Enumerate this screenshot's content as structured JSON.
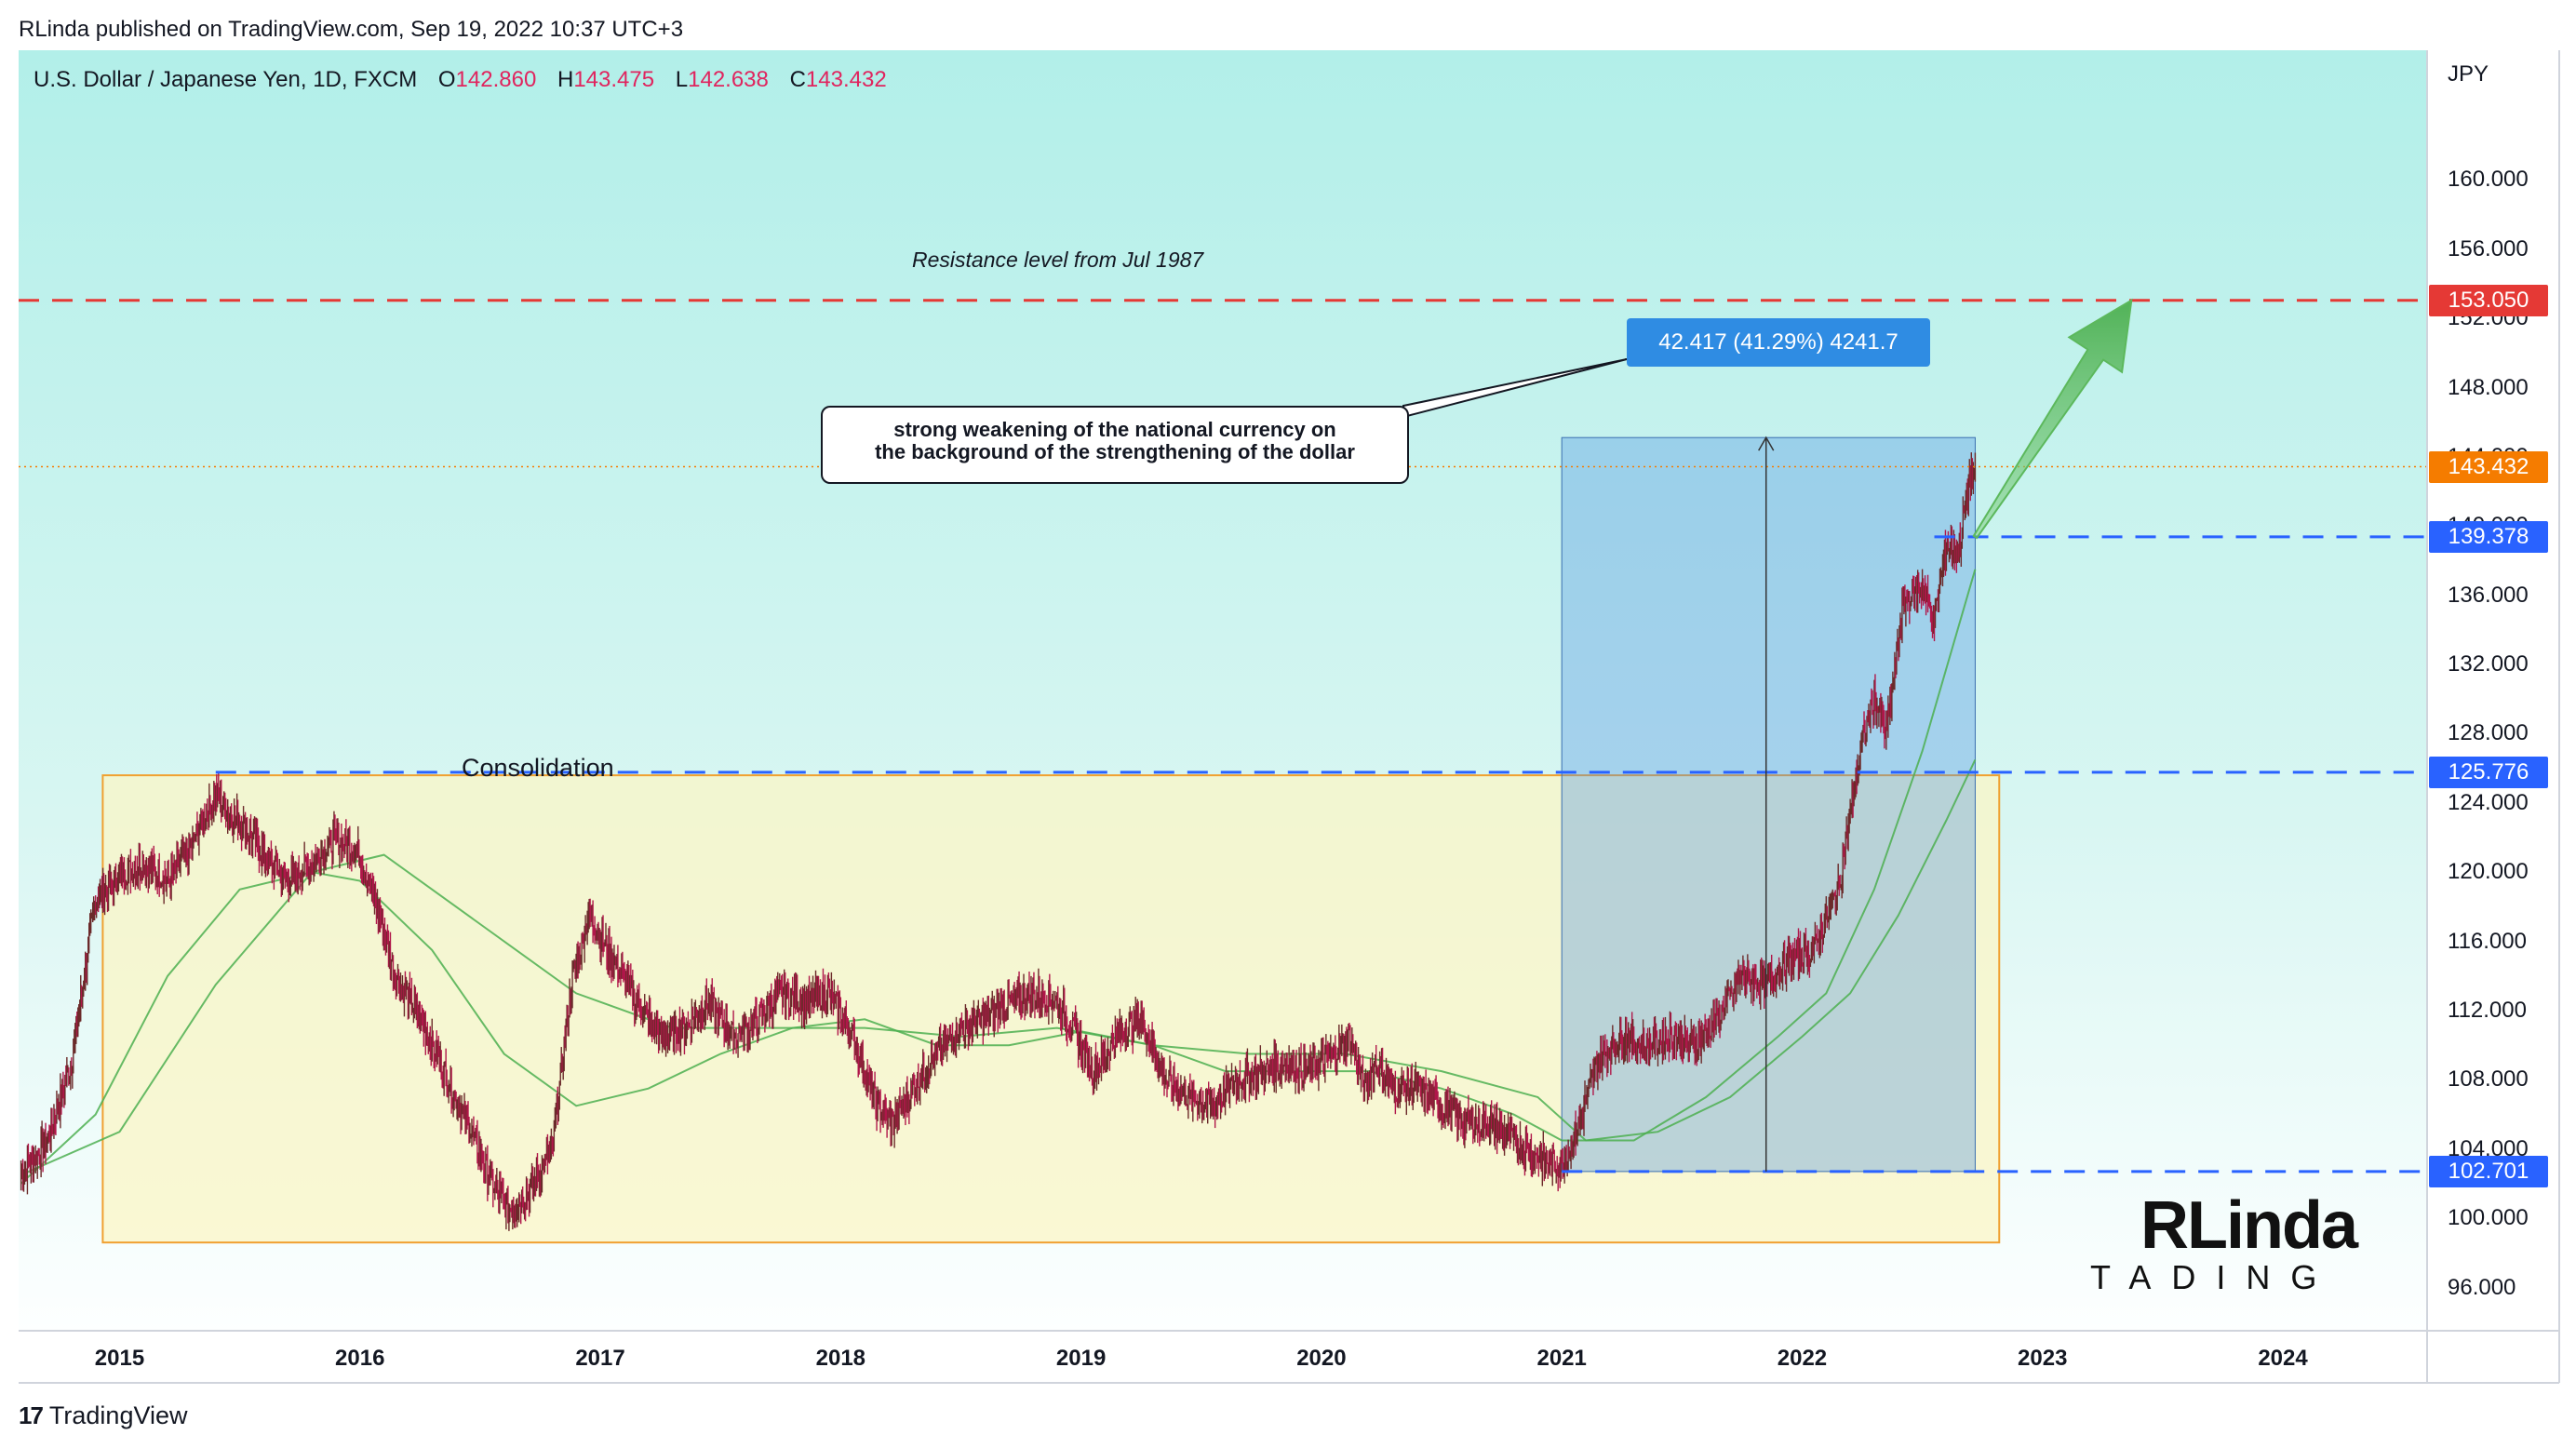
{
  "header": {
    "publish_text": "RLinda published on TradingView.com, Sep 19, 2022 10:37 UTC+3"
  },
  "symbol": {
    "name": "U.S. Dollar / Japanese Yen, 1D, FXCM",
    "o_label": "O",
    "o_value": "142.860",
    "h_label": "H",
    "h_value": "143.475",
    "l_label": "L",
    "l_value": "142.638",
    "c_label": "C",
    "c_value": "143.432"
  },
  "annotations": {
    "callout_line1": "strong weakening of the national currency on",
    "callout_line2": "the background of the strengthening of the dollar",
    "measure_label": "42.417 (41.29%) 4241.7",
    "resistance_note": "Resistance level from Jul 1987",
    "consolidation_label": "Consolidation"
  },
  "price_tags": {
    "resistance": "153.050",
    "last": "143.432",
    "level_high": "139.378",
    "level_mid": "125.776",
    "level_low": "102.701"
  },
  "footer": {
    "brand": "TradingView"
  },
  "watermark": {
    "main": "RLinda",
    "sub": "TADING"
  },
  "colors": {
    "candle_up": "#6b2a2a",
    "candle_down": "#b0174a",
    "level_line": "#2962ff",
    "resistance_line": "#e53935",
    "ma_line": "#4caf50",
    "last_price": "#f57c00",
    "measure_box": "#2f8ce3",
    "consolidation_border": "#f0a030"
  },
  "chart_data": {
    "type": "line",
    "title": "U.S. Dollar / Japanese Yen, 1D, FXCM",
    "ylabel": "JPY",
    "xlabel": "",
    "ylim": [
      93.5,
      167.5
    ],
    "xlim": [
      2014.58,
      2024.6
    ],
    "y_ticks": [
      "160.000",
      "156.000",
      "152.000",
      "148.000",
      "144.000",
      "140.000",
      "136.000",
      "132.000",
      "128.000",
      "124.000",
      "120.000",
      "116.000",
      "112.000",
      "108.000",
      "104.000",
      "100.000",
      "96.000"
    ],
    "x_ticks": [
      "2015",
      "2016",
      "2017",
      "2018",
      "2019",
      "2020",
      "2021",
      "2022",
      "2023",
      "2024"
    ],
    "grid": false,
    "series": [
      {
        "name": "",
        "x": [
          2014.59,
          2014.7,
          2014.8,
          2014.9,
          2015.0,
          2015.1,
          2015.2,
          2015.3,
          2015.4,
          2015.45,
          2015.5,
          2015.6,
          2015.7,
          2015.8,
          2015.9,
          2016.0,
          2016.08,
          2016.15,
          2016.25,
          2016.35,
          2016.45,
          2016.55,
          2016.62,
          2016.7,
          2016.8,
          2016.88,
          2016.95,
          2017.05,
          2017.15,
          2017.25,
          2017.35,
          2017.45,
          2017.55,
          2017.65,
          2017.75,
          2017.85,
          2017.95,
          2018.05,
          2018.15,
          2018.22,
          2018.3,
          2018.4,
          2018.5,
          2018.6,
          2018.7,
          2018.8,
          2018.9,
          2019.0,
          2019.05,
          2019.15,
          2019.25,
          2019.35,
          2019.45,
          2019.55,
          2019.65,
          2019.75,
          2019.85,
          2019.95,
          2020.05,
          2020.12,
          2020.18,
          2020.22,
          2020.3,
          2020.4,
          2020.5,
          2020.6,
          2020.7,
          2020.8,
          2020.9,
          2021.0,
          2021.05,
          2021.15,
          2021.25,
          2021.35,
          2021.45,
          2021.55,
          2021.65,
          2021.75,
          2021.85,
          2021.95,
          2022.05,
          2022.15,
          2022.2,
          2022.25,
          2022.3,
          2022.35,
          2022.42,
          2022.5,
          2022.55,
          2022.6,
          2022.65,
          2022.7,
          2022.72
        ],
        "values": [
          102.5,
          104.5,
          109.0,
          118.5,
          119.8,
          120.5,
          119.5,
          121.5,
          124.5,
          123.5,
          123.0,
          121.0,
          119.5,
          120.5,
          122.0,
          121.0,
          117.5,
          114.0,
          111.5,
          108.5,
          105.5,
          102.0,
          100.5,
          101.5,
          104.0,
          113.5,
          117.5,
          115.0,
          112.5,
          110.5,
          111.0,
          112.5,
          110.5,
          111.5,
          113.0,
          112.5,
          113.0,
          110.5,
          106.5,
          105.5,
          107.5,
          109.5,
          111.0,
          111.5,
          112.5,
          113.0,
          112.5,
          110.0,
          108.5,
          110.5,
          111.5,
          108.0,
          107.0,
          106.5,
          108.0,
          108.5,
          109.0,
          108.5,
          109.5,
          110.5,
          107.5,
          109.0,
          107.5,
          107.5,
          106.5,
          105.5,
          105.5,
          104.5,
          103.5,
          103.0,
          104.5,
          109.0,
          110.5,
          110.0,
          110.5,
          110.0,
          111.5,
          114.0,
          113.5,
          115.0,
          115.5,
          119.0,
          123.5,
          127.5,
          130.0,
          128.0,
          135.5,
          136.5,
          134.5,
          139.0,
          138.5,
          143.0,
          143.4
        ]
      },
      {
        "name": "",
        "x": [
          2014.59,
          2014.9,
          2015.2,
          2015.5,
          2015.8,
          2016.0,
          2016.3,
          2016.6,
          2016.9,
          2017.2,
          2017.5,
          2017.8,
          2018.1,
          2018.4,
          2018.7,
          2019.0,
          2019.3,
          2019.6,
          2019.9,
          2020.2,
          2020.5,
          2020.8,
          2021.0,
          2021.3,
          2021.6,
          2021.9,
          2022.1,
          2022.3,
          2022.5,
          2022.72
        ],
        "values": [
          102.0,
          106.0,
          114.0,
          119.0,
          120.0,
          119.5,
          115.5,
          109.5,
          106.5,
          107.5,
          109.5,
          111.0,
          111.5,
          110.0,
          110.0,
          110.8,
          110.0,
          108.5,
          108.5,
          108.5,
          107.5,
          106.0,
          104.5,
          104.5,
          107.0,
          110.5,
          113.0,
          119.0,
          127.0,
          137.5
        ]
      },
      {
        "name": "",
        "x": [
          2014.59,
          2015.0,
          2015.4,
          2015.8,
          2016.1,
          2016.5,
          2016.9,
          2017.3,
          2017.7,
          2018.1,
          2018.5,
          2018.9,
          2019.3,
          2019.7,
          2020.1,
          2020.5,
          2020.9,
          2021.1,
          2021.4,
          2021.7,
          2022.0,
          2022.2,
          2022.4,
          2022.6,
          2022.72
        ],
        "values": [
          102.5,
          105.0,
          113.5,
          120.0,
          121.0,
          117.0,
          113.0,
          111.0,
          111.0,
          111.0,
          110.5,
          111.0,
          110.0,
          109.5,
          109.5,
          108.5,
          107.0,
          104.5,
          105.0,
          107.0,
          110.5,
          113.0,
          117.5,
          123.0,
          126.5
        ]
      }
    ],
    "levels": [
      153.05,
      139.378,
      125.776,
      102.701
    ],
    "last_price": 143.432,
    "consolidation": {
      "x": [
        2014.93,
        2022.82
      ],
      "y": [
        98.6,
        125.6
      ]
    },
    "measure": {
      "x": [
        2021.0,
        2022.72
      ],
      "y": [
        102.701,
        145.118
      ]
    },
    "arrow": {
      "x_from": 2022.72,
      "y_from": 139.378,
      "x_to": 2023.37,
      "y_to": 153.05
    }
  }
}
